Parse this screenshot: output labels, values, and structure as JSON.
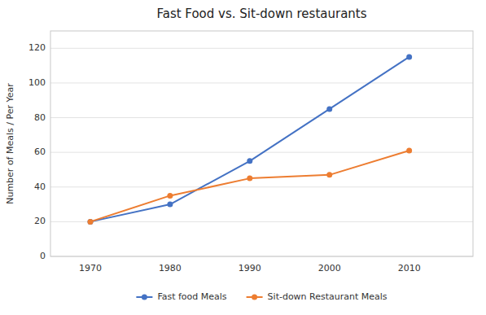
{
  "chart_data": {
    "type": "line",
    "title": "Fast Food vs. Sit-down restaurants",
    "y_label": "Number of Meals / Per Year",
    "x": [
      1970,
      1980,
      1990,
      2000,
      2010
    ],
    "series": [
      {
        "name": "Fast food Meals",
        "color": "#4472C4",
        "marker": "circle",
        "values": [
          20,
          30,
          55,
          85,
          115
        ]
      },
      {
        "name": "Sit-down Restaurant Meals",
        "color": "#ED7D31",
        "marker": "circle",
        "values": [
          20,
          35,
          45,
          47,
          61
        ]
      }
    ],
    "xlim": [
      1965,
      2018
    ],
    "xticks": [
      1970,
      1980,
      1990,
      2000,
      2010
    ],
    "ylim": [
      0,
      130
    ],
    "yticks": [
      0,
      20,
      40,
      60,
      80,
      100,
      120
    ],
    "grid": true,
    "legend": "bottom"
  }
}
